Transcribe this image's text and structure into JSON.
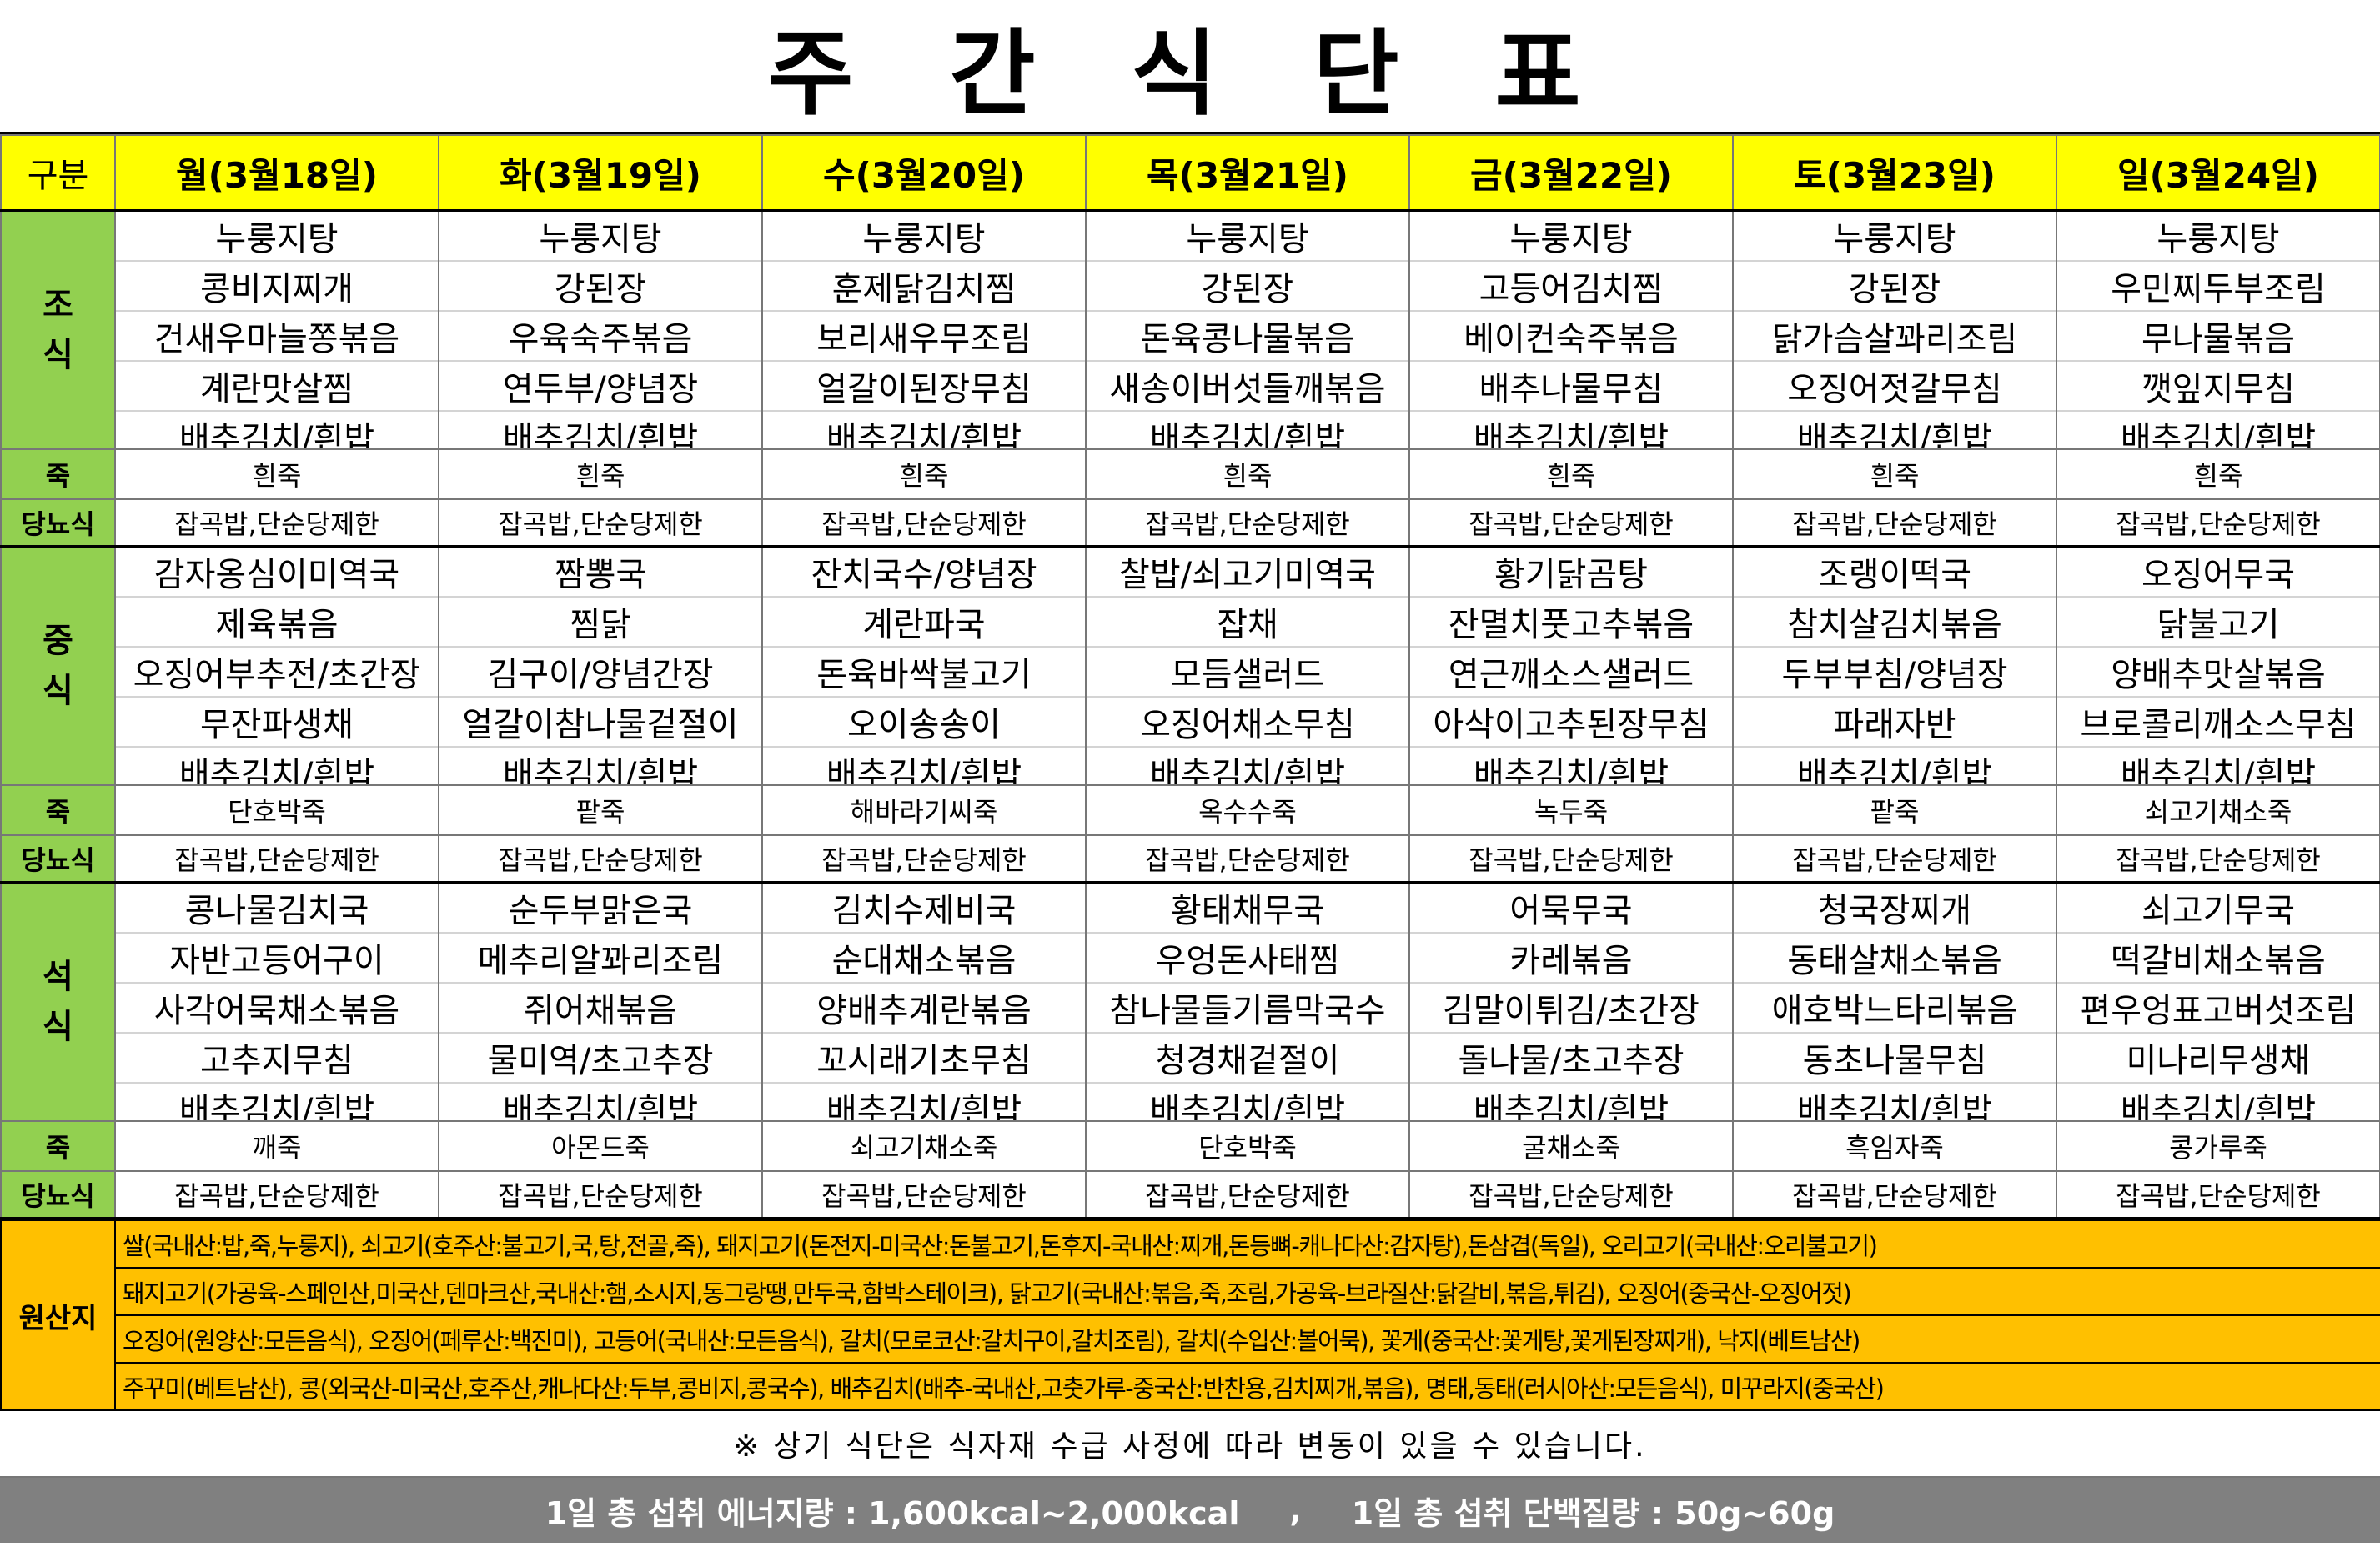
{
  "title": "주 간 식 단 표",
  "labels": {
    "corner": "구분",
    "breakfast": "조식",
    "lunch": "중식",
    "dinner": "석식",
    "porridge": "죽",
    "diabetic": "당뇨식",
    "origin": "원산지"
  },
  "colors": {
    "header": "#ffff00",
    "label": "#92d050",
    "origin": "#ffc000",
    "footer": "#808080"
  },
  "days": [
    {
      "label": "월(3월18일)",
      "breakfast": [
        "누룽지탕",
        "콩비지찌개",
        "건새우마늘쫑볶음",
        "계란맛살찜",
        "배추김치/흰밥"
      ],
      "breakfast_porridge": "흰죽",
      "breakfast_diabetic": "잡곡밥,단순당제한",
      "lunch": [
        "감자옹심이미역국",
        "제육볶음",
        "오징어부추전/초간장",
        "무잔파생채",
        "배추김치/흰밥"
      ],
      "lunch_porridge": "단호박죽",
      "lunch_diabetic": "잡곡밥,단순당제한",
      "dinner": [
        "콩나물김치국",
        "자반고등어구이",
        "사각어묵채소볶음",
        "고추지무침",
        "배추김치/흰밥"
      ],
      "dinner_porridge": "깨죽",
      "dinner_diabetic": "잡곡밥,단순당제한"
    },
    {
      "label": "화(3월19일)",
      "breakfast": [
        "누룽지탕",
        "강된장",
        "우육숙주볶음",
        "연두부/양념장",
        "배추김치/흰밥"
      ],
      "breakfast_porridge": "흰죽",
      "breakfast_diabetic": "잡곡밥,단순당제한",
      "lunch": [
        "짬뽕국",
        "찜닭",
        "김구이/양념간장",
        "얼갈이참나물겉절이",
        "배추김치/흰밥"
      ],
      "lunch_porridge": "팥죽",
      "lunch_diabetic": "잡곡밥,단순당제한",
      "dinner": [
        "순두부맑은국",
        "메추리알꽈리조림",
        "쥐어채볶음",
        "물미역/초고추장",
        "배추김치/흰밥"
      ],
      "dinner_porridge": "아몬드죽",
      "dinner_diabetic": "잡곡밥,단순당제한"
    },
    {
      "label": "수(3월20일)",
      "breakfast": [
        "누룽지탕",
        "훈제닭김치찜",
        "보리새우무조림",
        "얼갈이된장무침",
        "배추김치/흰밥"
      ],
      "breakfast_porridge": "흰죽",
      "breakfast_diabetic": "잡곡밥,단순당제한",
      "lunch": [
        "잔치국수/양념장",
        "계란파국",
        "돈육바싹불고기",
        "오이송송이",
        "배추김치/흰밥"
      ],
      "lunch_porridge": "해바라기씨죽",
      "lunch_diabetic": "잡곡밥,단순당제한",
      "dinner": [
        "김치수제비국",
        "순대채소볶음",
        "양배추계란볶음",
        "꼬시래기초무침",
        "배추김치/흰밥"
      ],
      "dinner_porridge": "쇠고기채소죽",
      "dinner_diabetic": "잡곡밥,단순당제한"
    },
    {
      "label": "목(3월21일)",
      "breakfast": [
        "누룽지탕",
        "강된장",
        "돈육콩나물볶음",
        "새송이버섯들깨볶음",
        "배추김치/흰밥"
      ],
      "breakfast_porridge": "흰죽",
      "breakfast_diabetic": "잡곡밥,단순당제한",
      "lunch": [
        "찰밥/쇠고기미역국",
        "잡채",
        "모듬샐러드",
        "오징어채소무침",
        "배추김치/흰밥"
      ],
      "lunch_porridge": "옥수수죽",
      "lunch_diabetic": "잡곡밥,단순당제한",
      "dinner": [
        "황태채무국",
        "우엉돈사태찜",
        "참나물들기름막국수",
        "청경채겉절이",
        "배추김치/흰밥"
      ],
      "dinner_porridge": "단호박죽",
      "dinner_diabetic": "잡곡밥,단순당제한"
    },
    {
      "label": "금(3월22일)",
      "breakfast": [
        "누룽지탕",
        "고등어김치찜",
        "베이컨숙주볶음",
        "배추나물무침",
        "배추김치/흰밥"
      ],
      "breakfast_porridge": "흰죽",
      "breakfast_diabetic": "잡곡밥,단순당제한",
      "lunch": [
        "황기닭곰탕",
        "잔멸치풋고추볶음",
        "연근깨소스샐러드",
        "아삭이고추된장무침",
        "배추김치/흰밥"
      ],
      "lunch_porridge": "녹두죽",
      "lunch_diabetic": "잡곡밥,단순당제한",
      "dinner": [
        "어묵무국",
        "카레볶음",
        "김말이튀김/초간장",
        "돌나물/초고추장",
        "배추김치/흰밥"
      ],
      "dinner_porridge": "굴채소죽",
      "dinner_diabetic": "잡곡밥,단순당제한"
    },
    {
      "label": "토(3월23일)",
      "breakfast": [
        "누룽지탕",
        "강된장",
        "닭가슴살꽈리조림",
        "오징어젓갈무침",
        "배추김치/흰밥"
      ],
      "breakfast_porridge": "흰죽",
      "breakfast_diabetic": "잡곡밥,단순당제한",
      "lunch": [
        "조랭이떡국",
        "참치살김치볶음",
        "두부부침/양념장",
        "파래자반",
        "배추김치/흰밥"
      ],
      "lunch_porridge": "팥죽",
      "lunch_diabetic": "잡곡밥,단순당제한",
      "dinner": [
        "청국장찌개",
        "동태살채소볶음",
        "애호박느타리볶음",
        "동초나물무침",
        "배추김치/흰밥"
      ],
      "dinner_porridge": "흑임자죽",
      "dinner_diabetic": "잡곡밥,단순당제한"
    },
    {
      "label": "일(3월24일)",
      "breakfast": [
        "누룽지탕",
        "우민찌두부조림",
        "무나물볶음",
        "깻잎지무침",
        "배추김치/흰밥"
      ],
      "breakfast_porridge": "흰죽",
      "breakfast_diabetic": "잡곡밥,단순당제한",
      "lunch": [
        "오징어무국",
        "닭불고기",
        "양배추맛살볶음",
        "브로콜리깨소스무침",
        "배추김치/흰밥"
      ],
      "lunch_porridge": "쇠고기채소죽",
      "lunch_diabetic": "잡곡밥,단순당제한",
      "dinner": [
        "쇠고기무국",
        "떡갈비채소볶음",
        "편우엉표고버섯조림",
        "미나리무생채",
        "배추김치/흰밥"
      ],
      "dinner_porridge": "콩가루죽",
      "dinner_diabetic": "잡곡밥,단순당제한"
    }
  ],
  "origin_lines": [
    "쌀(국내산:밥,죽,누룽지), 쇠고기(호주산:불고기,국,탕,전골,죽), 돼지고기(돈전지-미국산:돈불고기,돈후지-국내산:찌개,돈등뼈-캐나다산:감자탕),돈삼겹(독일), 오리고기(국내산:오리불고기)",
    "돼지고기(가공육-스페인산,미국산,덴마크산,국내산:햄,소시지,동그랑땡,만두국,함박스테이크), 닭고기(국내산:볶음,죽,조림,가공육-브라질산:닭갈비,볶음,튀김), 오징어(중국산-오징어젓)",
    "오징어(원양산:모든음식), 오징어(페루산:백진미), 고등어(국내산:모든음식), 갈치(모로코산:갈치구이,갈치조림), 갈치(수입산:볼어묵), 꽃게(중국산:꽃게탕,꽃게된장찌개), 낙지(베트남산)",
    "주꾸미(베트남산), 콩(외국산-미국산,호주산,캐나다산:두부,콩비지,콩국수), 배추김치(배추-국내산,고춧가루-중국산:반찬용,김치찌개,볶음), 명태,동태(러시아산:모든음식), 미꾸라지(중국산)"
  ],
  "note": "※ 상기 식단은 식자재 수급 사정에 따라 변동이 있을 수 있습니다.",
  "footer": {
    "energy": "1일 총 섭취 에너지량  :  1,600kcal~2,000kcal",
    "separator": ",",
    "protein": "1일 총 섭취 단백질량 : 50g~60g"
  }
}
